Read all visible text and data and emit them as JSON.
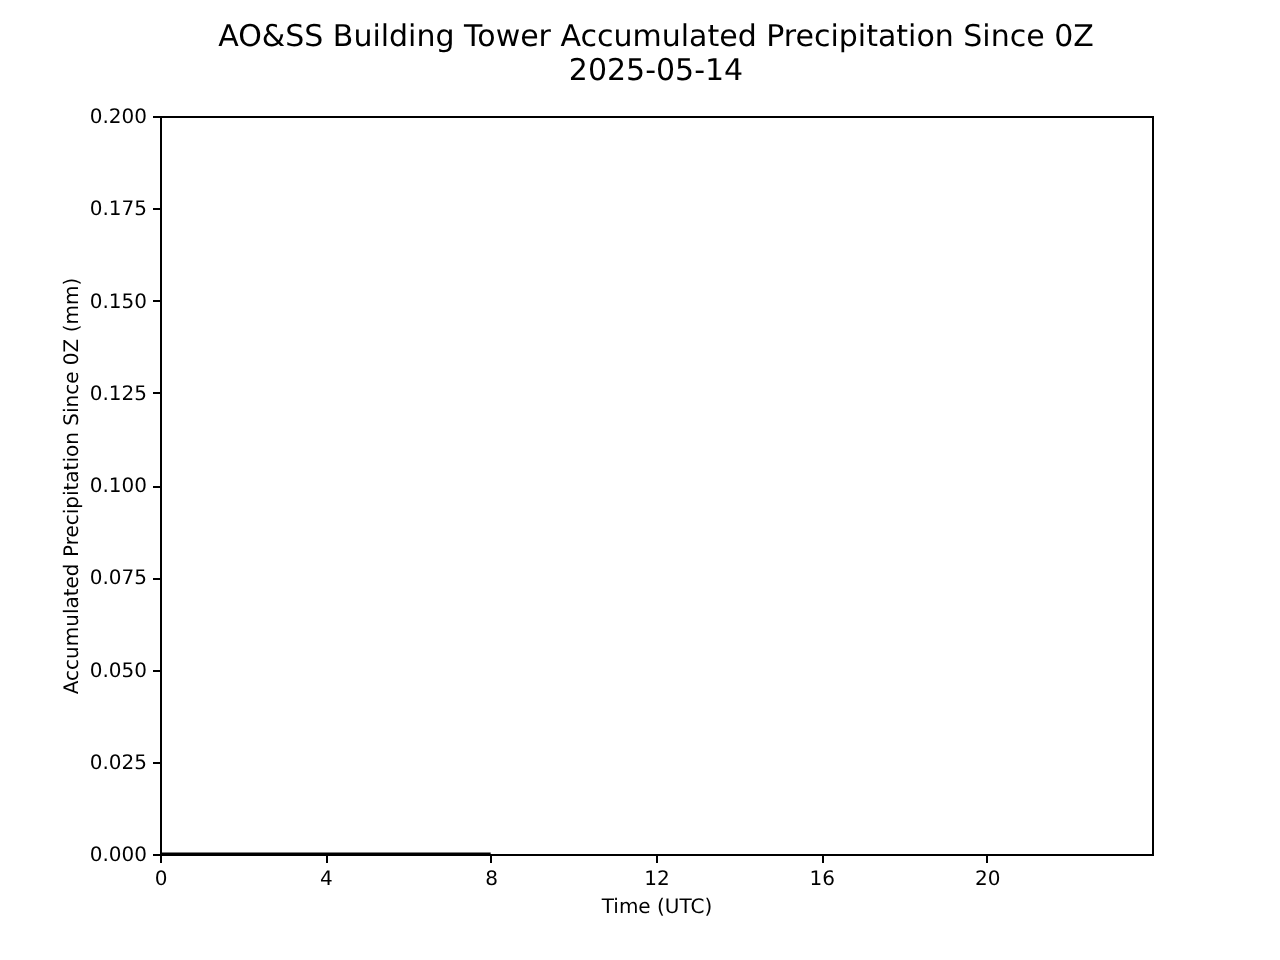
{
  "chart_data": {
    "type": "line",
    "title": "AO&SS Building Tower Accumulated Precipitation Since 0Z",
    "subtitle": "2025-05-14",
    "xlabel": "Time (UTC)",
    "ylabel": "Accumulated Precipitation Since 0Z (mm)",
    "x": [
      0,
      8
    ],
    "series": [
      {
        "color": "#000000",
        "values": [
          0,
          0
        ]
      }
    ],
    "xlim": [
      0,
      24
    ],
    "xticks": [
      0,
      4,
      8,
      12,
      16,
      20
    ],
    "ylim": [
      0,
      0.2
    ],
    "yticks": [
      {
        "value": 0,
        "label": "0.000"
      },
      0.025,
      {
        "value": 0.05,
        "label": "0.050"
      },
      0.075,
      {
        "value": 0.1,
        "label": "0.100"
      },
      0.125,
      {
        "value": 0.15,
        "label": "0.150"
      },
      0.175,
      {
        "value": 0.2,
        "label": "0.200"
      }
    ],
    "grid": false,
    "marker": "none",
    "line_style": "solid"
  }
}
